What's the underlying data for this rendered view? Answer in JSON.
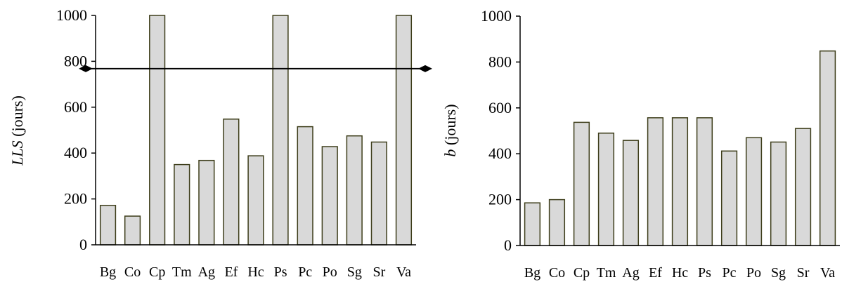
{
  "chart_data": [
    {
      "type": "bar",
      "categories": [
        "Bg",
        "Co",
        "Cp",
        "Tm",
        "Ag",
        "Ef",
        "Hc",
        "Ps",
        "Pc",
        "Po",
        "Sg",
        "Sr",
        "Va"
      ],
      "values": [
        172,
        125,
        1000,
        350,
        368,
        548,
        388,
        1000,
        515,
        428,
        475,
        448,
        1000
      ],
      "ylabel_italic": "LLS",
      "ylabel_rest": " (jours)",
      "ylim": [
        0,
        1000
      ],
      "yticks": [
        "0",
        "200",
        "400",
        "600",
        "800",
        "1000"
      ],
      "reference_line": 768,
      "grid": false,
      "bar_color": "#d9d9d9",
      "edge_color": "#3d3d1a"
    },
    {
      "type": "bar",
      "categories": [
        "Bg",
        "Co",
        "Cp",
        "Tm",
        "Ag",
        "Ef",
        "Hc",
        "Ps",
        "Pc",
        "Po",
        "Sg",
        "Sr",
        "Va"
      ],
      "values": [
        186,
        200,
        537,
        490,
        458,
        557,
        557,
        557,
        412,
        470,
        451,
        510,
        848
      ],
      "ylabel_italic": "b",
      "ylabel_rest": " (jours)",
      "ylim": [
        0,
        1000
      ],
      "yticks": [
        "0",
        "200",
        "400",
        "600",
        "800",
        "1000"
      ],
      "grid": false,
      "bar_color": "#d9d9d9",
      "edge_color": "#3d3d1a"
    }
  ]
}
